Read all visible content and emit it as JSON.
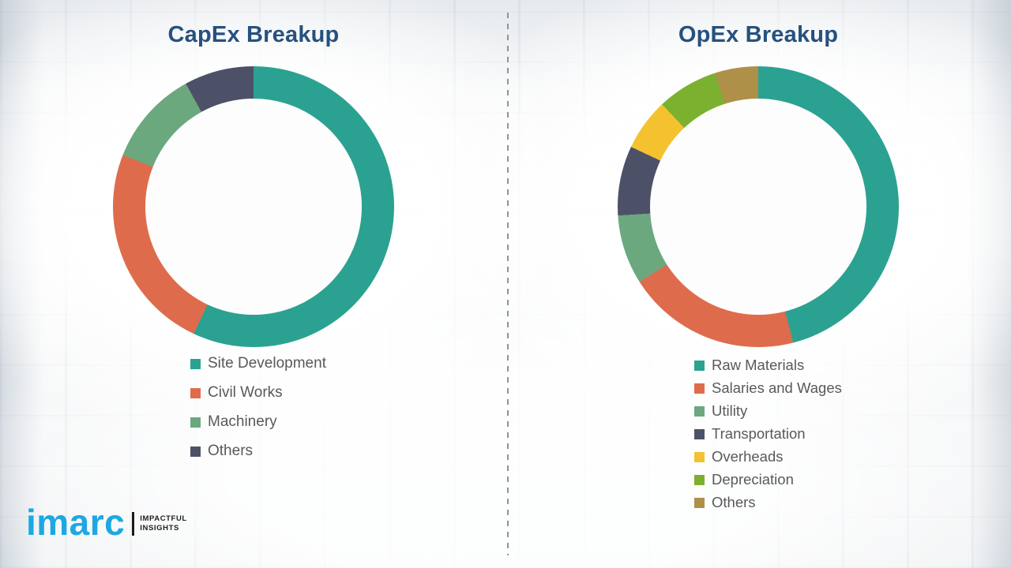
{
  "chart_data": [
    {
      "type": "pie",
      "subtype": "donut",
      "title": "CapEx Breakup",
      "labels": [
        "Site Development",
        "Civil Works",
        "Machinery",
        "Others"
      ],
      "values": [
        57,
        24,
        11,
        8
      ],
      "colors": [
        "#2BA291",
        "#DE6C4C",
        "#6BA87E",
        "#4D5168"
      ],
      "start_angle_deg": 0,
      "direction": "clockwise",
      "legend_position": "below-left",
      "data_labels": false
    },
    {
      "type": "pie",
      "subtype": "donut",
      "title": "OpEx Breakup",
      "labels": [
        "Raw Materials",
        "Salaries and Wages",
        "Utility",
        "Transportation",
        "Overheads",
        "Depreciation",
        "Others"
      ],
      "values": [
        46,
        20,
        8,
        8,
        6,
        7,
        5
      ],
      "colors": [
        "#2BA291",
        "#DE6C4C",
        "#6BA87E",
        "#4D5168",
        "#F4C22F",
        "#7BB12E",
        "#AE9048"
      ],
      "start_angle_deg": 0,
      "direction": "clockwise",
      "legend_position": "below-left",
      "data_labels": false
    }
  ],
  "divider": {
    "style": "dashed-vertical"
  },
  "logo": {
    "brand": "imarc",
    "tagline_line1": "IMPACTFUL",
    "tagline_line2": "INSIGHTS",
    "brand_color": "#1CA8E3"
  },
  "colors": {
    "title_text": "#26517E",
    "legend_text": "#595959"
  }
}
